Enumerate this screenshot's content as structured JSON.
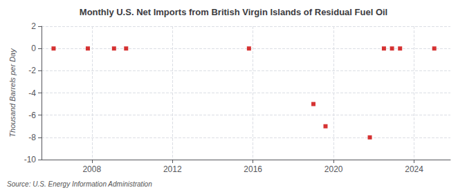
{
  "chart_data": {
    "type": "scatter",
    "title": "Monthly U.S. Net Imports from British Virgin Islands of Residual Fuel Oil",
    "ylabel": "Thousand Barrels per Day",
    "annotations": [
      "Source: U.S. Energy Information Administration"
    ],
    "x": [
      2006.1,
      2007.8,
      2009.1,
      2009.7,
      2015.8,
      2019.0,
      2019.6,
      2021.8,
      2022.5,
      2022.9,
      2023.3,
      2025.0
    ],
    "values": [
      0,
      0,
      0,
      0,
      0,
      -5.0,
      -7.0,
      -8.0,
      0,
      0,
      0,
      0
    ],
    "color": "#cc0000",
    "marker": "square",
    "xlim": [
      2005.5,
      2025.8
    ],
    "xticks": [
      2008,
      2012,
      2016,
      2020,
      2024
    ],
    "ylim": [
      -10,
      2
    ],
    "yticks": [
      -10,
      -8,
      -6,
      -4,
      -2,
      0,
      2
    ],
    "grid": true
  }
}
